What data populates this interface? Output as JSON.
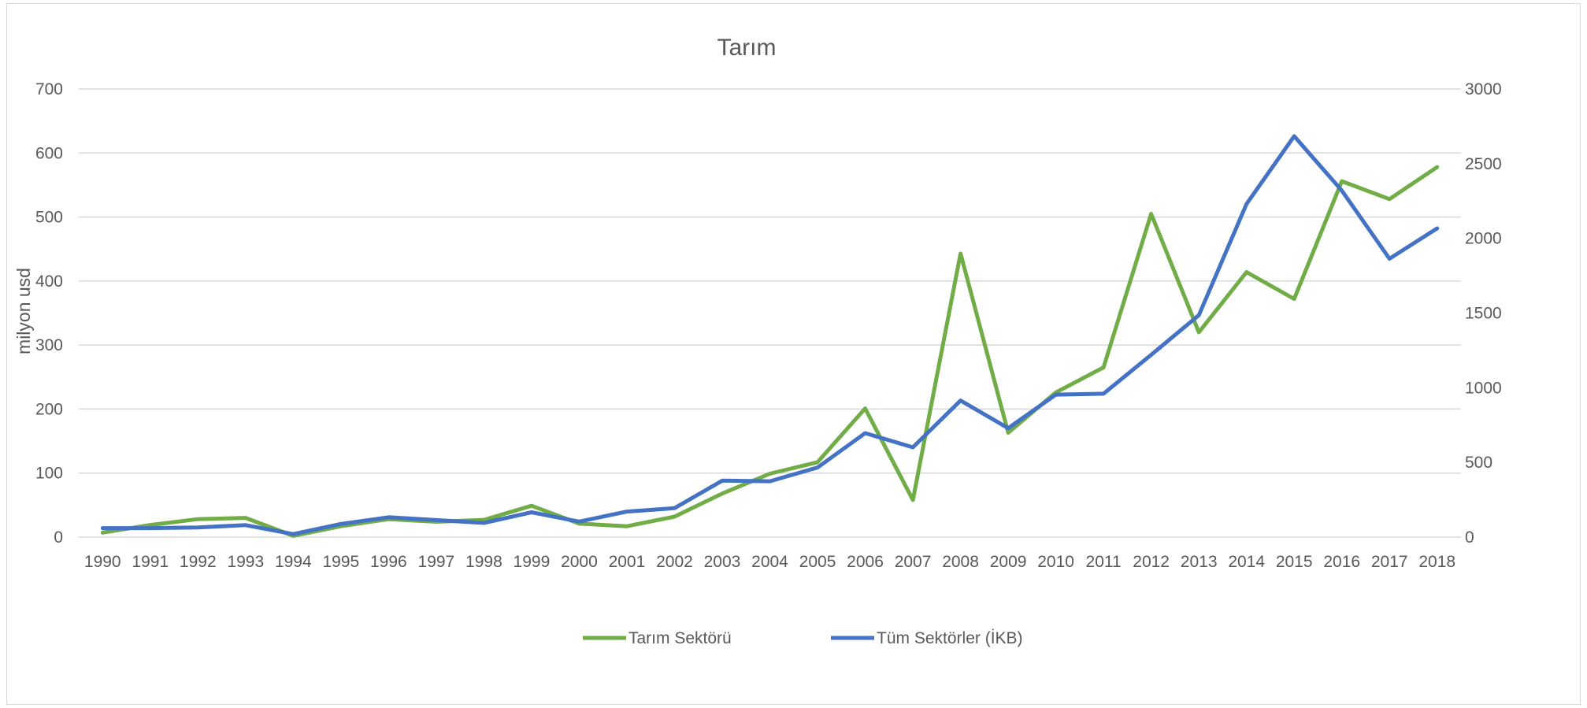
{
  "chart_data": {
    "type": "line",
    "title": "Tarım",
    "ylabel": "milyon usd",
    "y2label": "",
    "x": [
      "1990",
      "1991",
      "1992",
      "1993",
      "1994",
      "1995",
      "1996",
      "1997",
      "1998",
      "1999",
      "2000",
      "2001",
      "2002",
      "2003",
      "2004",
      "2005",
      "2006",
      "2007",
      "2008",
      "2009",
      "2010",
      "2011",
      "2012",
      "2013",
      "2014",
      "2015",
      "2016",
      "2017",
      "2018"
    ],
    "ylim": [
      0,
      700
    ],
    "y_ticks": [
      "0",
      "100",
      "200",
      "300",
      "400",
      "500",
      "600",
      "700"
    ],
    "y2lim": [
      0,
      3000
    ],
    "y2_ticks": [
      "0",
      "500",
      "1000",
      "1500",
      "2000",
      "2500",
      "3000"
    ],
    "grid": true,
    "legend_position": "bottom",
    "series": [
      {
        "name": "Tarım Sektörü",
        "axis": "left",
        "color": "#70ad47",
        "values": [
          7,
          19,
          28,
          30,
          2,
          17,
          28,
          24,
          27,
          49,
          21,
          17,
          32,
          68,
          99,
          117,
          201,
          58,
          443,
          163,
          226,
          265,
          505,
          320,
          414,
          372,
          556,
          528,
          578
        ]
      },
      {
        "name": "Tüm Sektörler (İKB)",
        "axis": "right",
        "color": "#4472c4",
        "values": [
          60,
          60,
          65,
          80,
          20,
          88,
          133,
          114,
          95,
          166,
          104,
          171,
          194,
          378,
          374,
          466,
          696,
          601,
          914,
          729,
          954,
          960,
          1220,
          1486,
          2230,
          2684,
          2320,
          1864,
          2067
        ]
      }
    ]
  }
}
